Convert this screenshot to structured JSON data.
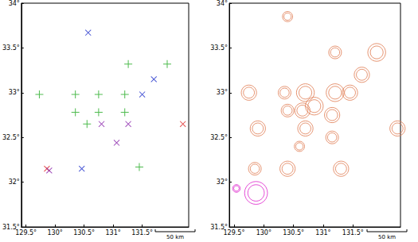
{
  "chart_data": [
    {
      "type": "scatter",
      "xlim": [
        129.42,
        132.3
      ],
      "xticks": [
        {
          "value": 129.5,
          "label": "129.5°"
        },
        {
          "value": 130,
          "label": "130°"
        },
        {
          "value": 130.5,
          "label": "130.5°"
        },
        {
          "value": 131,
          "label": "131°"
        },
        {
          "value": 131.5,
          "label": "131.5°"
        }
      ],
      "ylim": [
        31.5,
        34
      ],
      "yticks": [
        {
          "value": 31.5,
          "label": "31.5°"
        },
        {
          "value": 32,
          "label": "32°"
        },
        {
          "value": 32.5,
          "label": "32.5°"
        },
        {
          "value": 33,
          "label": "33°"
        },
        {
          "value": 33.5,
          "label": "33.5°"
        },
        {
          "value": 34,
          "label": "34°"
        }
      ],
      "scale_label": "50 km",
      "series": [
        {
          "color": "#22aa22",
          "marker": "plus",
          "x": [
            131.26,
            131.93,
            129.73,
            130.35,
            130.75,
            131.2,
            130.35,
            130.75,
            131.2,
            130.55,
            131.45
          ],
          "y": [
            33.32,
            33.32,
            32.98,
            32.98,
            32.98,
            32.98,
            32.78,
            32.78,
            32.78,
            32.65,
            32.17
          ]
        },
        {
          "color": "#2233cc",
          "marker": "x",
          "x": [
            130.57,
            131.7,
            131.5,
            130.46
          ],
          "y": [
            33.67,
            33.15,
            32.98,
            32.15
          ]
        },
        {
          "color": "#dd2222",
          "marker": "x",
          "x": [
            132.2,
            129.86
          ],
          "y": [
            32.65,
            32.15
          ]
        },
        {
          "color": "#8822aa",
          "marker": "x",
          "x": [
            130.8,
            131.26,
            131.06,
            129.9
          ],
          "y": [
            32.65,
            32.65,
            32.44,
            32.13
          ]
        }
      ]
    },
    {
      "type": "scatter",
      "xlim": [
        129.42,
        132.3
      ],
      "xticks": [
        {
          "value": 129.5,
          "label": "129.5°"
        },
        {
          "value": 130,
          "label": "130°"
        },
        {
          "value": 130.5,
          "label": "130.5°"
        },
        {
          "value": 131,
          "label": "131°"
        },
        {
          "value": 131.5,
          "label": "131.5°"
        }
      ],
      "ylim": [
        31.5,
        34
      ],
      "yticks": [
        {
          "value": 31.5,
          "label": "31.5°"
        },
        {
          "value": 32,
          "label": "32°"
        },
        {
          "value": 32.5,
          "label": "32.5°"
        },
        {
          "value": 33,
          "label": "33°"
        },
        {
          "value": 33.5,
          "label": "33.5°"
        },
        {
          "value": 34,
          "label": "34°"
        }
      ],
      "scale_label": "50 km",
      "series": [
        {
          "color": "#e07a50",
          "marker": "circle",
          "x": [
            130.4,
            131.2,
            131.9,
            131.65,
            129.75,
            130.35,
            130.7,
            131.2,
            131.45,
            130.4,
            130.65,
            130.85,
            131.15,
            130.7,
            131.15,
            129.9,
            132.25,
            130.6,
            129.85,
            130.4,
            131.3
          ],
          "y": [
            33.85,
            33.45,
            33.45,
            33.2,
            33.0,
            33.0,
            33.0,
            33.0,
            33.0,
            32.8,
            32.8,
            32.85,
            32.75,
            32.6,
            32.5,
            32.6,
            32.6,
            32.4,
            32.15,
            32.15,
            32.15
          ],
          "sizes": [
            8,
            10,
            14,
            12,
            12,
            10,
            14,
            14,
            12,
            10,
            12,
            14,
            12,
            12,
            10,
            12,
            12,
            8,
            10,
            12,
            12
          ]
        },
        {
          "color": "#dd22cc",
          "marker": "circle",
          "x": [
            129.54,
            129.87
          ],
          "y": [
            31.93,
            31.88
          ],
          "sizes": [
            6,
            18
          ]
        }
      ]
    }
  ]
}
